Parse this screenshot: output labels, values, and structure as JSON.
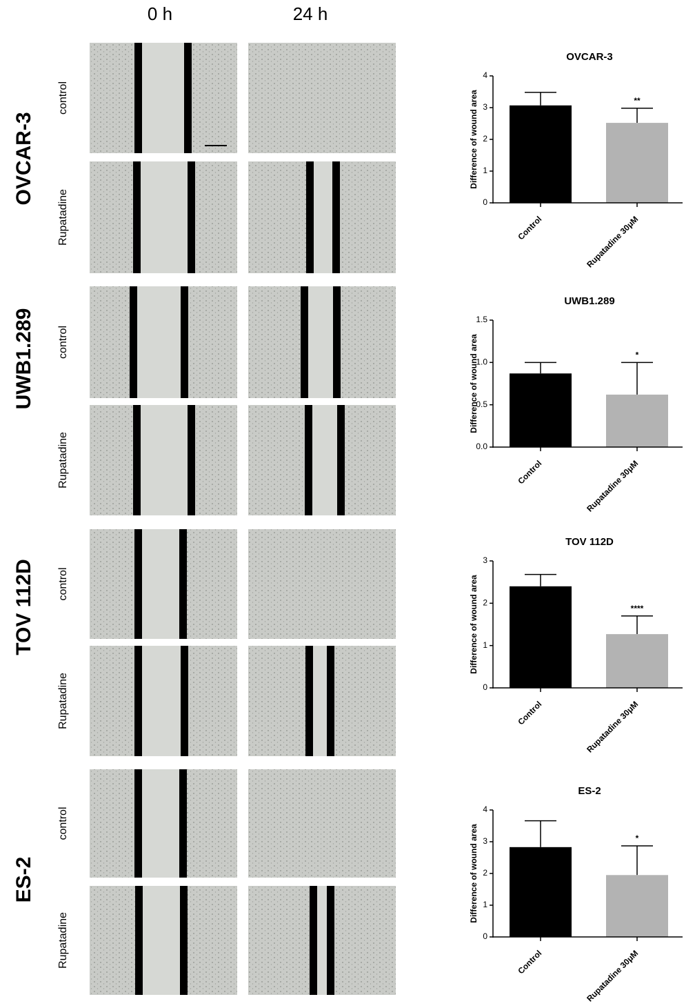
{
  "columns": [
    "0 h",
    "24 h"
  ],
  "cell_lines": [
    "OVCAR-3",
    "UWB1.289",
    "TOV 112D",
    "ES-2"
  ],
  "conditions": [
    "control",
    "Rupatadine"
  ],
  "chart_data": [
    {
      "type": "bar",
      "title": "OVCAR-3",
      "y_label": "Difference of wound area",
      "categories": [
        "Control",
        "Rupatadine 30μM"
      ],
      "values": [
        3.07,
        2.52
      ],
      "errors": [
        0.41,
        0.46
      ],
      "colors": [
        "#000000",
        "#b3b3b3"
      ],
      "annotation": "**",
      "ylim": [
        0,
        4
      ],
      "yticks": [
        0,
        1,
        2,
        3,
        4
      ]
    },
    {
      "type": "bar",
      "title": "UWB1.289",
      "y_label": "Difference of wound area",
      "categories": [
        "Control",
        "Rupatadine 30μM"
      ],
      "values": [
        0.87,
        0.62
      ],
      "errors": [
        0.13,
        0.38
      ],
      "colors": [
        "#000000",
        "#b3b3b3"
      ],
      "annotation": "*",
      "ylim": [
        0,
        1.5
      ],
      "yticks": [
        {
          "value": 0,
          "label": "0.0"
        },
        0.5,
        {
          "value": 1,
          "label": "1.0"
        },
        1.5
      ]
    },
    {
      "type": "bar",
      "title": "TOV 112D",
      "y_label": "Difference of wound area",
      "categories": [
        "Control",
        "Rupatadine 30μM"
      ],
      "values": [
        2.4,
        1.27
      ],
      "errors": [
        0.28,
        0.43
      ],
      "colors": [
        "#000000",
        "#b3b3b3"
      ],
      "annotation": "****",
      "ylim": [
        0,
        3
      ],
      "yticks": [
        0,
        1,
        2,
        3
      ]
    },
    {
      "type": "bar",
      "title": "ES-2",
      "y_label": "Difference of wound area",
      "categories": [
        "Control",
        "Rupatadine 30μM"
      ],
      "values": [
        2.83,
        1.95
      ],
      "errors": [
        0.83,
        0.92
      ],
      "colors": [
        "#000000",
        "#b3b3b3"
      ],
      "annotation": "*",
      "ylim": [
        0,
        4
      ],
      "yticks": [
        0,
        1,
        2,
        3,
        4
      ]
    }
  ]
}
